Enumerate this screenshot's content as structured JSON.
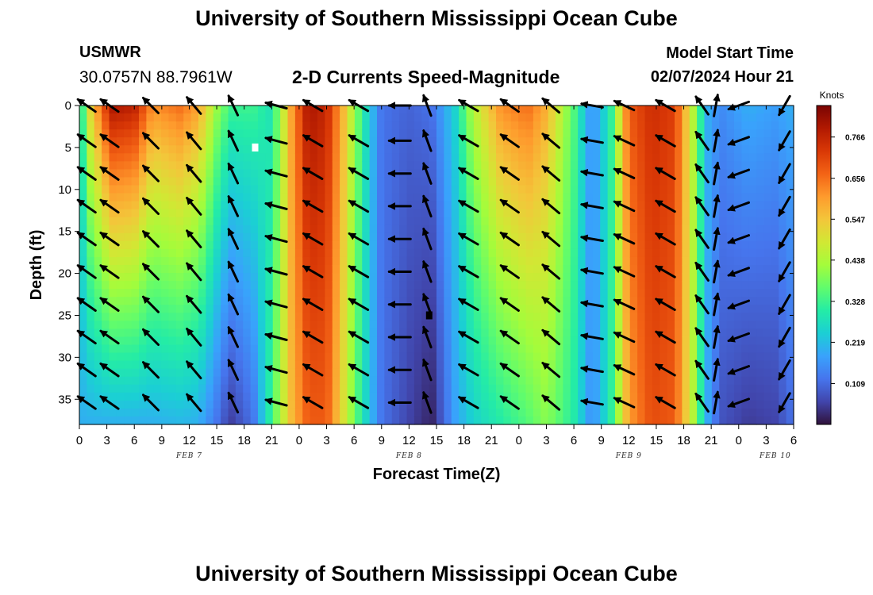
{
  "header": {
    "title": "University of Southern Mississippi Ocean Cube",
    "station_name": "USMWR",
    "station_coords": "30.0757N  88.7961W",
    "plot_title": "2-D Currents Speed-Magnitude",
    "model_label": "Model Start Time",
    "model_time": "02/07/2024 Hour 21"
  },
  "footer": {
    "title": "University of Southern Mississippi Ocean Cube"
  },
  "chart_data": {
    "type": "heatmap",
    "title": "2-D Currents Speed-Magnitude",
    "xlabel": "Forecast Time(Z)",
    "ylabel": "Depth (ft)",
    "x_range_hours": [
      0,
      78
    ],
    "x_ticks": [
      {
        "hour": 0,
        "label": "0"
      },
      {
        "hour": 3,
        "label": "3"
      },
      {
        "hour": 6,
        "label": "6"
      },
      {
        "hour": 9,
        "label": "9"
      },
      {
        "hour": 12,
        "label": "12"
      },
      {
        "hour": 15,
        "label": "15"
      },
      {
        "hour": 18,
        "label": "18"
      },
      {
        "hour": 21,
        "label": "21"
      },
      {
        "hour": 24,
        "label": "0"
      },
      {
        "hour": 27,
        "label": "3"
      },
      {
        "hour": 30,
        "label": "6"
      },
      {
        "hour": 33,
        "label": "9"
      },
      {
        "hour": 36,
        "label": "12"
      },
      {
        "hour": 39,
        "label": "15"
      },
      {
        "hour": 42,
        "label": "18"
      },
      {
        "hour": 45,
        "label": "21"
      },
      {
        "hour": 48,
        "label": "0"
      },
      {
        "hour": 51,
        "label": "3"
      },
      {
        "hour": 54,
        "label": "6"
      },
      {
        "hour": 57,
        "label": "9"
      },
      {
        "hour": 60,
        "label": "12"
      },
      {
        "hour": 63,
        "label": "15"
      },
      {
        "hour": 66,
        "label": "18"
      },
      {
        "hour": 69,
        "label": "21"
      },
      {
        "hour": 72,
        "label": "0"
      },
      {
        "hour": 75,
        "label": "3"
      },
      {
        "hour": 78,
        "label": "6"
      }
    ],
    "day_labels": [
      {
        "hour": 12,
        "label": "FEB 7"
      },
      {
        "hour": 36,
        "label": "FEB 8"
      },
      {
        "hour": 60,
        "label": "FEB 9"
      },
      {
        "hour": 76,
        "label": "FEB 10"
      }
    ],
    "y_range_ft": [
      0,
      38
    ],
    "y_ticks": [
      0,
      5,
      10,
      15,
      20,
      25,
      30,
      35
    ],
    "colorbar": {
      "unit": "Knots",
      "range": [
        0.0,
        0.85
      ],
      "ticks": [
        0.109,
        0.219,
        0.328,
        0.438,
        0.547,
        0.656,
        0.766
      ],
      "tick_labels": [
        "0.109",
        "0.219",
        "0.328",
        "0.438",
        "0.547",
        "0.656",
        "0.766"
      ],
      "palette": [
        "#30123b",
        "#4145ab",
        "#4675ed",
        "#39a2fc",
        "#1bcfd4",
        "#24eca6",
        "#61fc6c",
        "#a4fc3b",
        "#d1e834",
        "#f3c63a",
        "#fe9b2d",
        "#f36315",
        "#d93806",
        "#b11901",
        "#7a0402"
      ]
    },
    "speed_keyframes": [
      {
        "hour": 0,
        "surface": 0.23,
        "bottom": 0.2
      },
      {
        "hour": 1,
        "surface": 0.5,
        "bottom": 0.2
      },
      {
        "hour": 3.5,
        "surface": 0.8,
        "bottom": 0.2
      },
      {
        "hour": 6,
        "surface": 0.78,
        "bottom": 0.2
      },
      {
        "hour": 8,
        "surface": 0.62,
        "bottom": 0.2
      },
      {
        "hour": 11,
        "surface": 0.66,
        "bottom": 0.21
      },
      {
        "hour": 13,
        "surface": 0.6,
        "bottom": 0.2
      },
      {
        "hour": 15,
        "surface": 0.42,
        "bottom": 0.12
      },
      {
        "hour": 16.5,
        "surface": 0.33,
        "bottom": 0.05
      },
      {
        "hour": 19,
        "surface": 0.33,
        "bottom": 0.12
      },
      {
        "hour": 21,
        "surface": 0.28,
        "bottom": 0.33
      },
      {
        "hour": 23,
        "surface": 0.58,
        "bottom": 0.55
      },
      {
        "hour": 25,
        "surface": 0.8,
        "bottom": 0.68
      },
      {
        "hour": 27,
        "surface": 0.76,
        "bottom": 0.68
      },
      {
        "hour": 29,
        "surface": 0.55,
        "bottom": 0.48
      },
      {
        "hour": 31,
        "surface": 0.3,
        "bottom": 0.28
      },
      {
        "hour": 33,
        "surface": 0.12,
        "bottom": 0.12
      },
      {
        "hour": 36,
        "surface": 0.1,
        "bottom": 0.06
      },
      {
        "hour": 38.5,
        "surface": 0.12,
        "bottom": 0.02
      },
      {
        "hour": 41,
        "surface": 0.25,
        "bottom": 0.18
      },
      {
        "hour": 43,
        "surface": 0.45,
        "bottom": 0.25
      },
      {
        "hour": 46,
        "surface": 0.62,
        "bottom": 0.3
      },
      {
        "hour": 49,
        "surface": 0.66,
        "bottom": 0.35
      },
      {
        "hour": 51,
        "surface": 0.58,
        "bottom": 0.4
      },
      {
        "hour": 54,
        "surface": 0.35,
        "bottom": 0.3
      },
      {
        "hour": 56,
        "surface": 0.15,
        "bottom": 0.15
      },
      {
        "hour": 58,
        "surface": 0.3,
        "bottom": 0.3
      },
      {
        "hour": 60,
        "surface": 0.68,
        "bottom": 0.6
      },
      {
        "hour": 62.5,
        "surface": 0.75,
        "bottom": 0.7
      },
      {
        "hour": 65,
        "surface": 0.72,
        "bottom": 0.68
      },
      {
        "hour": 67,
        "surface": 0.45,
        "bottom": 0.45
      },
      {
        "hour": 68.5,
        "surface": 0.2,
        "bottom": 0.2
      },
      {
        "hour": 70,
        "surface": 0.15,
        "bottom": 0.08
      },
      {
        "hour": 73,
        "surface": 0.2,
        "bottom": 0.05
      },
      {
        "hour": 76,
        "surface": 0.18,
        "bottom": 0.06
      },
      {
        "hour": 78,
        "surface": 0.2,
        "bottom": 0.12
      }
    ],
    "vector_columns": [
      {
        "hour": 0.8,
        "angle_deg": 145
      },
      {
        "hour": 3.3,
        "angle_deg": 145
      },
      {
        "hour": 7.8,
        "angle_deg": 135
      },
      {
        "hour": 12.5,
        "angle_deg": 130
      },
      {
        "hour": 16.8,
        "angle_deg": 115
      },
      {
        "hour": 21.5,
        "angle_deg": 165
      },
      {
        "hour": 25.5,
        "angle_deg": 150
      },
      {
        "hour": 30.5,
        "angle_deg": 150
      },
      {
        "hour": 35,
        "angle_deg": 180
      },
      {
        "hour": 38,
        "angle_deg": 110
      },
      {
        "hour": 42.5,
        "angle_deg": 150
      },
      {
        "hour": 47,
        "angle_deg": 145
      },
      {
        "hour": 51.5,
        "angle_deg": 140
      },
      {
        "hour": 56,
        "angle_deg": 170
      },
      {
        "hour": 59.5,
        "angle_deg": 155
      },
      {
        "hour": 64,
        "angle_deg": 150
      },
      {
        "hour": 68,
        "angle_deg": 125
      },
      {
        "hour": 69.5,
        "angle_deg": 80
      },
      {
        "hour": 72,
        "angle_deg": 200
      },
      {
        "hour": 77,
        "angle_deg": 240
      }
    ],
    "vector_depths_ft": [
      0,
      4.2,
      8.1,
      12,
      15.9,
      19.8,
      23.7,
      27.6,
      31.5,
      35.4
    ],
    "markers": [
      {
        "hour": 19.2,
        "depth_ft": 5.0,
        "color": "#ffffff"
      },
      {
        "hour": 38.2,
        "depth_ft": 25.0,
        "color": "#000000"
      }
    ]
  }
}
